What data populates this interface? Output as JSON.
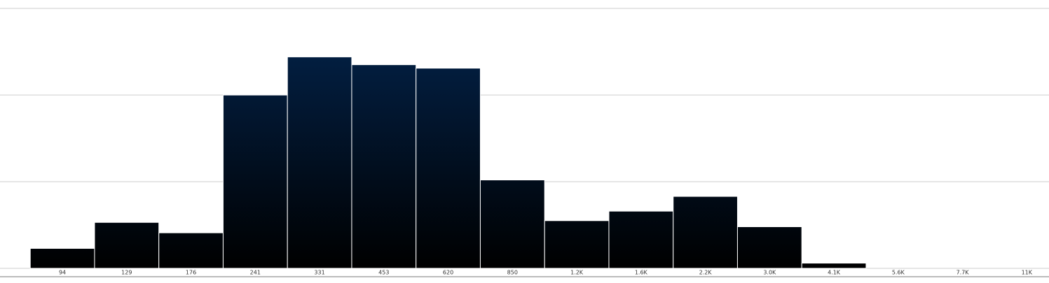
{
  "chart_data": {
    "type": "histogram",
    "categories": [
      "94",
      "129",
      "176",
      "241",
      "331",
      "453",
      "620",
      "850",
      "1.2K",
      "1.6K",
      "2.2K",
      "3.0K",
      "4.1K",
      "5.6K",
      "7.7K",
      "11K"
    ],
    "values": [
      0.23,
      0.53,
      0.41,
      2.0,
      2.44,
      2.35,
      2.31,
      1.02,
      0.55,
      0.66,
      0.83,
      0.48,
      0.06,
      0,
      0,
      0
    ],
    "color": "#03254f",
    "ylim": [
      0,
      3
    ],
    "yticks": [
      0,
      1,
      2,
      3
    ],
    "ytick_labels": false,
    "grid": true
  }
}
